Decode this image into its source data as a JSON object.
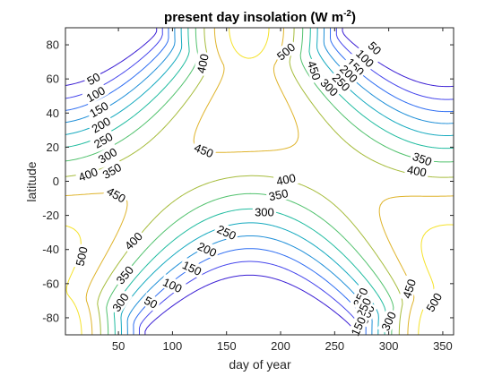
{
  "chart_data": {
    "type": "contour",
    "title": "present day insolation (W m",
    "title_superscript": "-2",
    "title_suffix": ")",
    "xlabel": "day of year",
    "ylabel": "latitude",
    "xlim": [
      1,
      360
    ],
    "ylim": [
      -90,
      90
    ],
    "x_ticks": [
      50,
      100,
      150,
      200,
      250,
      300,
      350
    ],
    "y_ticks": [
      80,
      60,
      40,
      20,
      0,
      -20,
      -40,
      -60,
      -80
    ],
    "levels": [
      50,
      100,
      150,
      200,
      250,
      300,
      350,
      400,
      450,
      500
    ],
    "colors": {
      "50": "#3b1fd4",
      "100": "#4646ec",
      "150": "#2f6ef2",
      "200": "#1f8fd8",
      "250": "#16aabf",
      "300": "#21bca0",
      "350": "#52c26e",
      "400": "#a6bc3c",
      "450": "#dfb42c",
      "500": "#f5e22a"
    },
    "contour_labels": [
      {
        "text": "50",
        "day": 27,
        "lat": 60,
        "angle": -30
      },
      {
        "text": "100",
        "day": 29,
        "lat": 51,
        "angle": -30
      },
      {
        "text": "150",
        "day": 32,
        "lat": 42,
        "angle": -30
      },
      {
        "text": "200",
        "day": 34,
        "lat": 33,
        "angle": -30
      },
      {
        "text": "250",
        "day": 36,
        "lat": 24,
        "angle": -30
      },
      {
        "text": "300",
        "day": 40,
        "lat": 15,
        "angle": -30
      },
      {
        "text": "350",
        "day": 44,
        "lat": 6,
        "angle": -30
      },
      {
        "text": "400",
        "day": 22,
        "lat": 4,
        "angle": -20
      },
      {
        "text": "450",
        "day": 48,
        "lat": -8,
        "angle": 30
      },
      {
        "text": "500",
        "day": 16,
        "lat": -44,
        "angle": -78
      },
      {
        "text": "400",
        "day": 128,
        "lat": 69,
        "angle": -78
      },
      {
        "text": "500",
        "day": 205,
        "lat": 76,
        "angle": -40
      },
      {
        "text": "450",
        "day": 231,
        "lat": 65,
        "angle": 72
      },
      {
        "text": "450",
        "day": 129,
        "lat": 18,
        "angle": 22
      },
      {
        "text": "50",
        "day": 287,
        "lat": 78,
        "angle": 45
      },
      {
        "text": "100",
        "day": 278,
        "lat": 72,
        "angle": 45
      },
      {
        "text": "150",
        "day": 269,
        "lat": 67,
        "angle": 45
      },
      {
        "text": "200",
        "day": 263,
        "lat": 63,
        "angle": 45
      },
      {
        "text": "250",
        "day": 256,
        "lat": 58,
        "angle": 45
      },
      {
        "text": "300",
        "day": 245,
        "lat": 55,
        "angle": 45
      },
      {
        "text": "350",
        "day": 331,
        "lat": 13,
        "angle": 20
      },
      {
        "text": "400",
        "day": 326,
        "lat": 6,
        "angle": 10
      },
      {
        "text": "400",
        "day": 205,
        "lat": 1,
        "angle": -12
      },
      {
        "text": "350",
        "day": 198,
        "lat": -8,
        "angle": -12
      },
      {
        "text": "300",
        "day": 185,
        "lat": -18,
        "angle": 0
      },
      {
        "text": "250",
        "day": 150,
        "lat": -30,
        "angle": 25
      },
      {
        "text": "200",
        "day": 132,
        "lat": -40,
        "angle": 25
      },
      {
        "text": "150",
        "day": 118,
        "lat": -51,
        "angle": 25
      },
      {
        "text": "100",
        "day": 100,
        "lat": -61,
        "angle": 25
      },
      {
        "text": "50",
        "day": 80,
        "lat": -71,
        "angle": 28
      },
      {
        "text": "400",
        "day": 64,
        "lat": -35,
        "angle": -45
      },
      {
        "text": "350",
        "day": 56,
        "lat": -55,
        "angle": -50
      },
      {
        "text": "300",
        "day": 52,
        "lat": -71,
        "angle": -55
      },
      {
        "text": "450",
        "day": 319,
        "lat": -63,
        "angle": -72
      },
      {
        "text": "500",
        "day": 342,
        "lat": -71,
        "angle": -60
      },
      {
        "text": "350",
        "day": 274,
        "lat": -68,
        "angle": -65
      },
      {
        "text": "300",
        "day": 300,
        "lat": -82,
        "angle": -65
      },
      {
        "text": "300",
        "day": 280,
        "lat": -78,
        "angle": -65
      },
      {
        "text": "250",
        "day": 277,
        "lat": -74,
        "angle": -65
      },
      {
        "text": "150",
        "day": 272,
        "lat": -85,
        "angle": -65
      }
    ]
  }
}
